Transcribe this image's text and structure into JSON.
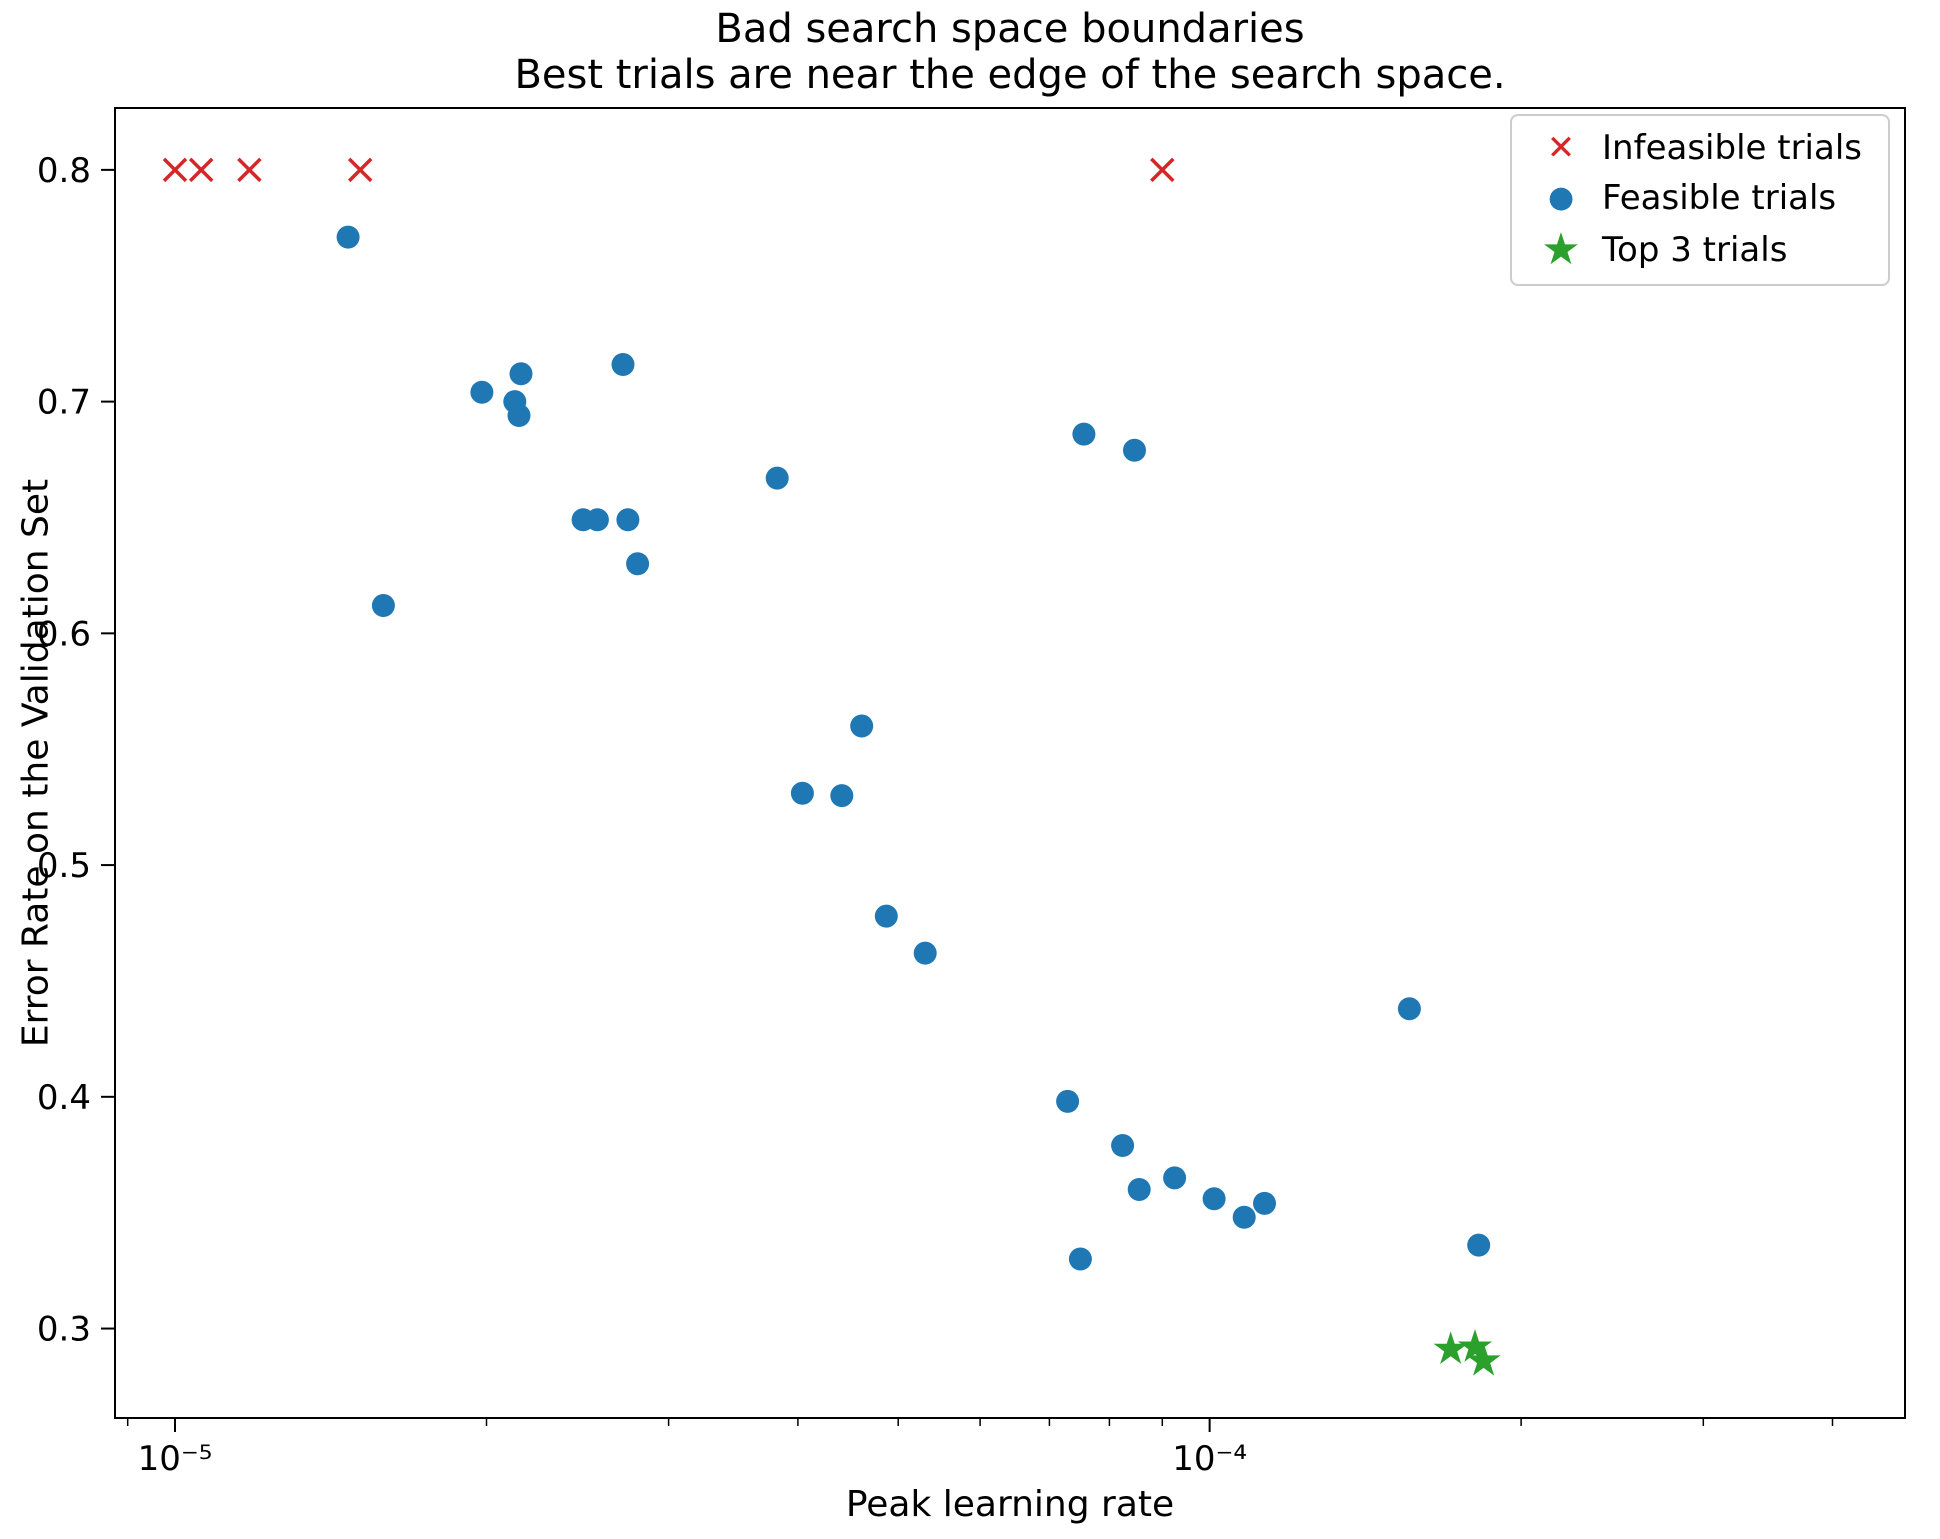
{
  "title": {
    "line1": "Bad search space boundaries",
    "line2": "Best trials are near the edge of the search space."
  },
  "axes": {
    "xlabel": "Peak learning rate",
    "ylabel": "Error Rate on the Validation Set"
  },
  "legend": {
    "items": [
      {
        "label": "Infeasible trials",
        "glyph": "✕",
        "color": "#d62728"
      },
      {
        "label": "Feasible trials",
        "glyph": "●",
        "color": "#1f77b4"
      },
      {
        "label": "Top 3 trials",
        "glyph": "★",
        "color": "#2ca02c"
      }
    ]
  },
  "chart_data": {
    "type": "scatter",
    "title": "Bad search space boundaries\nBest trials are near the edge of the search space.",
    "xlabel": "Peak learning rate",
    "ylabel": "Error Rate on the Validation Set",
    "xscale": "log",
    "xlim": [
      8.75e-06,
      0.00047
    ],
    "ylim": [
      0.2614,
      0.8267
    ],
    "xticks": [
      {
        "value": 1e-05,
        "label": "10⁻⁵"
      },
      {
        "value": 0.0001,
        "label": "10⁻⁴"
      }
    ],
    "yticks": [
      0.3,
      0.4,
      0.5,
      0.6,
      0.7,
      0.8
    ],
    "grid": false,
    "legend_position": "upper right",
    "series": [
      {
        "name": "Infeasible trials",
        "marker": "x",
        "color": "#d62728",
        "points": [
          [
            1e-05,
            0.8
          ],
          [
            1.06e-05,
            0.8
          ],
          [
            1.18e-05,
            0.8
          ],
          [
            1.51e-05,
            0.8
          ],
          [
            9e-05,
            0.8
          ]
        ]
      },
      {
        "name": "Feasible trials",
        "marker": "circle",
        "color": "#1f77b4",
        "points": [
          [
            1.47e-05,
            0.771
          ],
          [
            1.59e-05,
            0.612
          ],
          [
            1.98e-05,
            0.704
          ],
          [
            2.13e-05,
            0.7
          ],
          [
            2.15e-05,
            0.694
          ],
          [
            2.16e-05,
            0.712
          ],
          [
            2.48e-05,
            0.649
          ],
          [
            2.56e-05,
            0.649
          ],
          [
            2.71e-05,
            0.716
          ],
          [
            2.74e-05,
            0.649
          ],
          [
            2.8e-05,
            0.63
          ],
          [
            3.82e-05,
            0.667
          ],
          [
            4.04e-05,
            0.531
          ],
          [
            4.41e-05,
            0.53
          ],
          [
            4.61e-05,
            0.56
          ],
          [
            4.87e-05,
            0.478
          ],
          [
            5.31e-05,
            0.462
          ],
          [
            7.29e-05,
            0.398
          ],
          [
            7.5e-05,
            0.33
          ],
          [
            7.56e-05,
            0.686
          ],
          [
            8.24e-05,
            0.379
          ],
          [
            8.46e-05,
            0.679
          ],
          [
            8.55e-05,
            0.36
          ],
          [
            9.25e-05,
            0.365
          ],
          [
            0.000101,
            0.356
          ],
          [
            0.000108,
            0.348
          ],
          [
            0.000113,
            0.354
          ],
          [
            0.000156,
            0.438
          ],
          [
            0.000182,
            0.336
          ]
        ]
      },
      {
        "name": "Top 3 trials",
        "marker": "star",
        "color": "#2ca02c",
        "points": [
          [
            0.000171,
            0.291
          ],
          [
            0.0001805,
            0.292
          ],
          [
            0.000184,
            0.286
          ]
        ]
      }
    ]
  }
}
